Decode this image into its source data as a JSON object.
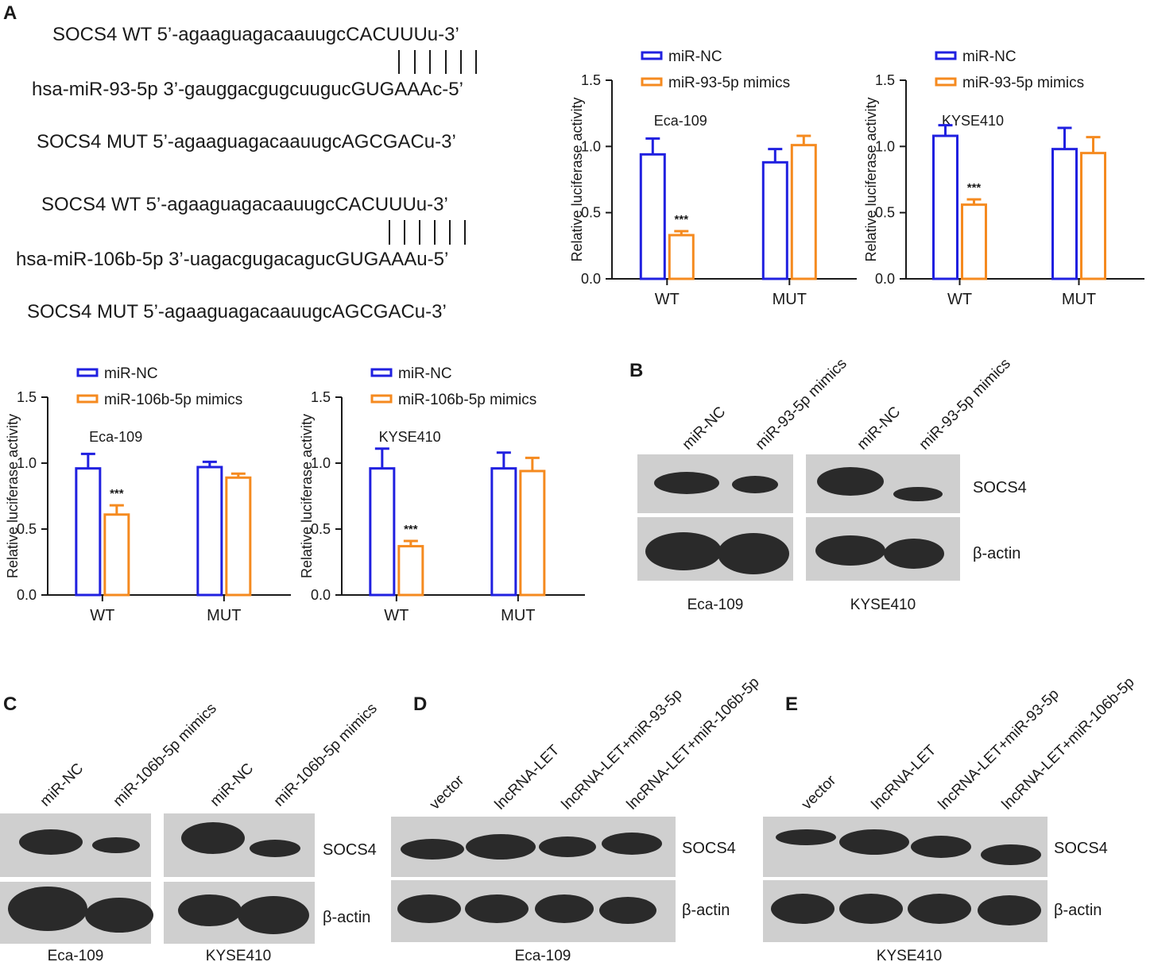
{
  "panels": {
    "A": "A",
    "B": "B",
    "C": "C",
    "D": "D",
    "E": "E"
  },
  "sequences": {
    "block1": {
      "wt": "SOCS4  WT 5’-agaaguagacaauugcCACUUUu-3’",
      "mir": "hsa-miR-93-5p 3’-gauggacgugcuugucGUGAAAc-5’",
      "mut": "SOCS4  MUT 5’-agaaguagacaauugcAGCGACu-3’"
    },
    "block2": {
      "wt": "SOCS4  WT 5’-agaaguagacaauugcCACUUUu-3’",
      "mir": "hsa-miR-106b-5p 3’-uagacgugacagucGUGAAAu-5’",
      "mut": "SOCS4  MUT 5’-agaaguagacaauugcAGCGACu-3’"
    }
  },
  "colors": {
    "nc": "#2020e0",
    "mimic": "#f58a1f",
    "band": "#2a2a2a",
    "blot_bg": "#cfcfcf"
  },
  "chart_data": [
    {
      "type": "bar",
      "title": "Eca-109",
      "ylabel": "Relative luciferase activity",
      "categories": [
        "WT",
        "MUT"
      ],
      "ylim": [
        0,
        1.5
      ],
      "yticks": [
        "0.0",
        "0.5",
        "1.0",
        "1.5"
      ],
      "series": [
        {
          "name": "miR-NC",
          "values": [
            0.94,
            0.88
          ],
          "errors": [
            0.12,
            0.1
          ]
        },
        {
          "name": "miR-93-5p mimics",
          "values": [
            0.33,
            1.01
          ],
          "errors": [
            0.03,
            0.07
          ]
        }
      ],
      "annotations": [
        "***",
        ""
      ]
    },
    {
      "type": "bar",
      "title": "KYSE410",
      "ylabel": "Relative luciferase activity",
      "categories": [
        "WT",
        "MUT"
      ],
      "ylim": [
        0,
        1.5
      ],
      "yticks": [
        "0.0",
        "0.5",
        "1.0",
        "1.5"
      ],
      "series": [
        {
          "name": "miR-NC",
          "values": [
            1.08,
            0.98
          ],
          "errors": [
            0.08,
            0.16
          ]
        },
        {
          "name": "miR-93-5p mimics",
          "values": [
            0.56,
            0.95
          ],
          "errors": [
            0.04,
            0.12
          ]
        }
      ],
      "annotations": [
        "***",
        ""
      ]
    },
    {
      "type": "bar",
      "title": "Eca-109",
      "ylabel": "Relative luciferase activity",
      "categories": [
        "WT",
        "MUT"
      ],
      "ylim": [
        0,
        1.5
      ],
      "yticks": [
        "0.0",
        "0.5",
        "1.0",
        "1.5"
      ],
      "series": [
        {
          "name": "miR-NC",
          "values": [
            0.96,
            0.97
          ],
          "errors": [
            0.11,
            0.04
          ]
        },
        {
          "name": "miR-106b-5p mimics",
          "values": [
            0.61,
            0.89
          ],
          "errors": [
            0.07,
            0.03
          ]
        }
      ],
      "annotations": [
        "***",
        ""
      ]
    },
    {
      "type": "bar",
      "title": "KYSE410",
      "ylabel": "Relative luciferase activity",
      "categories": [
        "WT",
        "MUT"
      ],
      "ylim": [
        0,
        1.5
      ],
      "yticks": [
        "0.0",
        "0.5",
        "1.0",
        "1.5"
      ],
      "series": [
        {
          "name": "miR-NC",
          "values": [
            0.96,
            0.96
          ],
          "errors": [
            0.15,
            0.12
          ]
        },
        {
          "name": "miR-106b-5p mimics",
          "values": [
            0.37,
            0.94
          ],
          "errors": [
            0.04,
            0.1
          ]
        }
      ],
      "annotations": [
        "***",
        ""
      ]
    }
  ],
  "blots": {
    "B": {
      "lanes": [
        "miR-NC",
        "miR-93-5p mimics",
        "miR-NC",
        "miR-93-5p mimics"
      ],
      "proteins": [
        "SOCS4",
        "β-actin"
      ],
      "cells": [
        "Eca-109",
        "KYSE410"
      ]
    },
    "C": {
      "lanes": [
        "miR-NC",
        "miR-106b-5p mimics",
        "miR-NC",
        "miR-106b-5p mimics"
      ],
      "proteins": [
        "SOCS4",
        "β-actin"
      ],
      "cells": [
        "Eca-109",
        "KYSE410"
      ]
    },
    "D": {
      "lanes": [
        "vector",
        "lncRNA-LET",
        "lncRNA-LET+miR-93-5p",
        "lncRNA-LET+miR-106b-5p"
      ],
      "proteins": [
        "SOCS4",
        "β-actin"
      ],
      "cell": "Eca-109"
    },
    "E": {
      "lanes": [
        "vector",
        "lncRNA-LET",
        "lncRNA-LET+miR-93-5p",
        "lncRNA-LET+miR-106b-5p"
      ],
      "proteins": [
        "SOCS4",
        "β-actin"
      ],
      "cell": "KYSE410"
    }
  }
}
